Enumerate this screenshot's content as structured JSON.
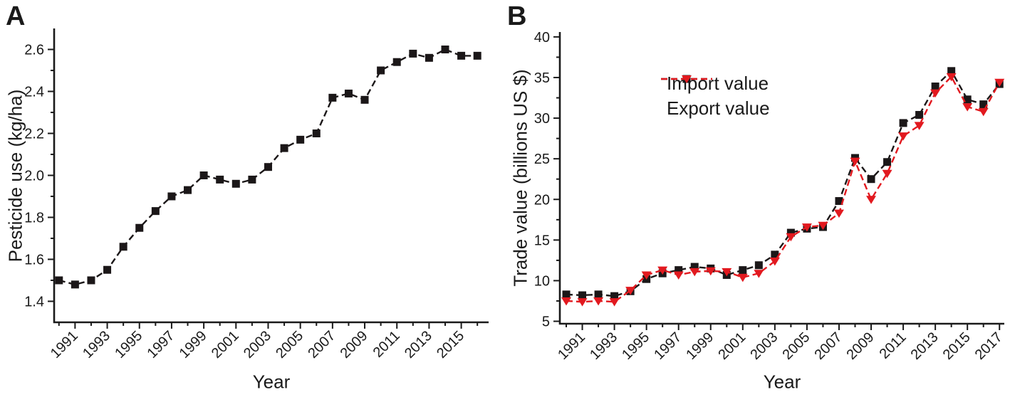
{
  "figure": {
    "background": "#ffffff",
    "text_color": "#1a1a1a"
  },
  "chart_data": [
    {
      "type": "line",
      "panel_label": "A",
      "title": "",
      "xlabel": "Year",
      "ylabel": "Pesticide use (kg/ha)",
      "x": [
        1990,
        1991,
        1992,
        1993,
        1994,
        1995,
        1996,
        1997,
        1998,
        1999,
        2000,
        2001,
        2002,
        2003,
        2004,
        2005,
        2006,
        2007,
        2008,
        2009,
        2010,
        2011,
        2012,
        2013,
        2014,
        2015,
        2016
      ],
      "series": [
        {
          "name": "Pesticide use",
          "color": "#1b1718",
          "marker": "square",
          "line_style": "dashed",
          "values": [
            1.5,
            1.48,
            1.5,
            1.55,
            1.66,
            1.75,
            1.83,
            1.9,
            1.93,
            2.0,
            1.98,
            1.96,
            1.98,
            2.04,
            2.13,
            2.17,
            2.2,
            2.37,
            2.39,
            2.36,
            2.5,
            2.54,
            2.58,
            2.56,
            2.6,
            2.57,
            2.57
          ]
        }
      ],
      "xlim": [
        1989.7,
        2016.7
      ],
      "ylim": [
        1.3,
        2.7
      ],
      "ytick_labels": [
        "1.4",
        "1.6",
        "1.8",
        "2.0",
        "2.2",
        "2.4",
        "2.6"
      ],
      "xtick_labels": [
        "1991",
        "1993",
        "1995",
        "1997",
        "1999",
        "2001",
        "2003",
        "2005",
        "2007",
        "2009",
        "2011",
        "2013",
        "2015"
      ],
      "grid": "off",
      "legend_position": "none"
    },
    {
      "type": "line",
      "panel_label": "B",
      "title": "",
      "xlabel": "Year",
      "ylabel": "Trade value (billions US $)",
      "x": [
        1990,
        1991,
        1992,
        1993,
        1994,
        1995,
        1996,
        1997,
        1998,
        1999,
        2000,
        2001,
        2002,
        2003,
        2004,
        2005,
        2006,
        2007,
        2008,
        2009,
        2010,
        2011,
        2012,
        2013,
        2014,
        2015,
        2016,
        2017
      ],
      "series": [
        {
          "name": "Import value",
          "color": "#1b1718",
          "marker": "square",
          "line_style": "dashed",
          "values": [
            8.3,
            8.2,
            8.3,
            8.1,
            8.7,
            10.2,
            10.9,
            11.3,
            11.7,
            11.5,
            10.7,
            11.3,
            11.9,
            13.2,
            15.9,
            16.4,
            16.6,
            19.8,
            25.1,
            22.5,
            24.6,
            29.4,
            30.4,
            33.9,
            35.8,
            32.3,
            31.7,
            34.2
          ]
        },
        {
          "name": "Export value",
          "color": "#e2191f",
          "marker": "triangle-down",
          "line_style": "dashed",
          "values": [
            7.5,
            7.4,
            7.5,
            7.4,
            8.8,
            10.7,
            11.3,
            10.7,
            11.1,
            11.2,
            11.1,
            10.4,
            10.9,
            12.4,
            15.4,
            16.6,
            16.8,
            18.3,
            24.7,
            20.0,
            23.2,
            27.8,
            29.1,
            33.1,
            35.1,
            31.4,
            30.8,
            34.4
          ]
        }
      ],
      "xlim": [
        1989.6,
        2017.3
      ],
      "ylim": [
        4.7,
        40.6
      ],
      "ytick_labels": [
        "5",
        "10",
        "15",
        "20",
        "25",
        "30",
        "35",
        "40"
      ],
      "xtick_labels": [
        "1991",
        "1993",
        "1995",
        "1997",
        "1999",
        "2001",
        "2003",
        "2005",
        "2007",
        "2009",
        "2011",
        "2013",
        "2015",
        "2017"
      ],
      "grid": "off",
      "legend_position": "upper-left-inside"
    }
  ]
}
